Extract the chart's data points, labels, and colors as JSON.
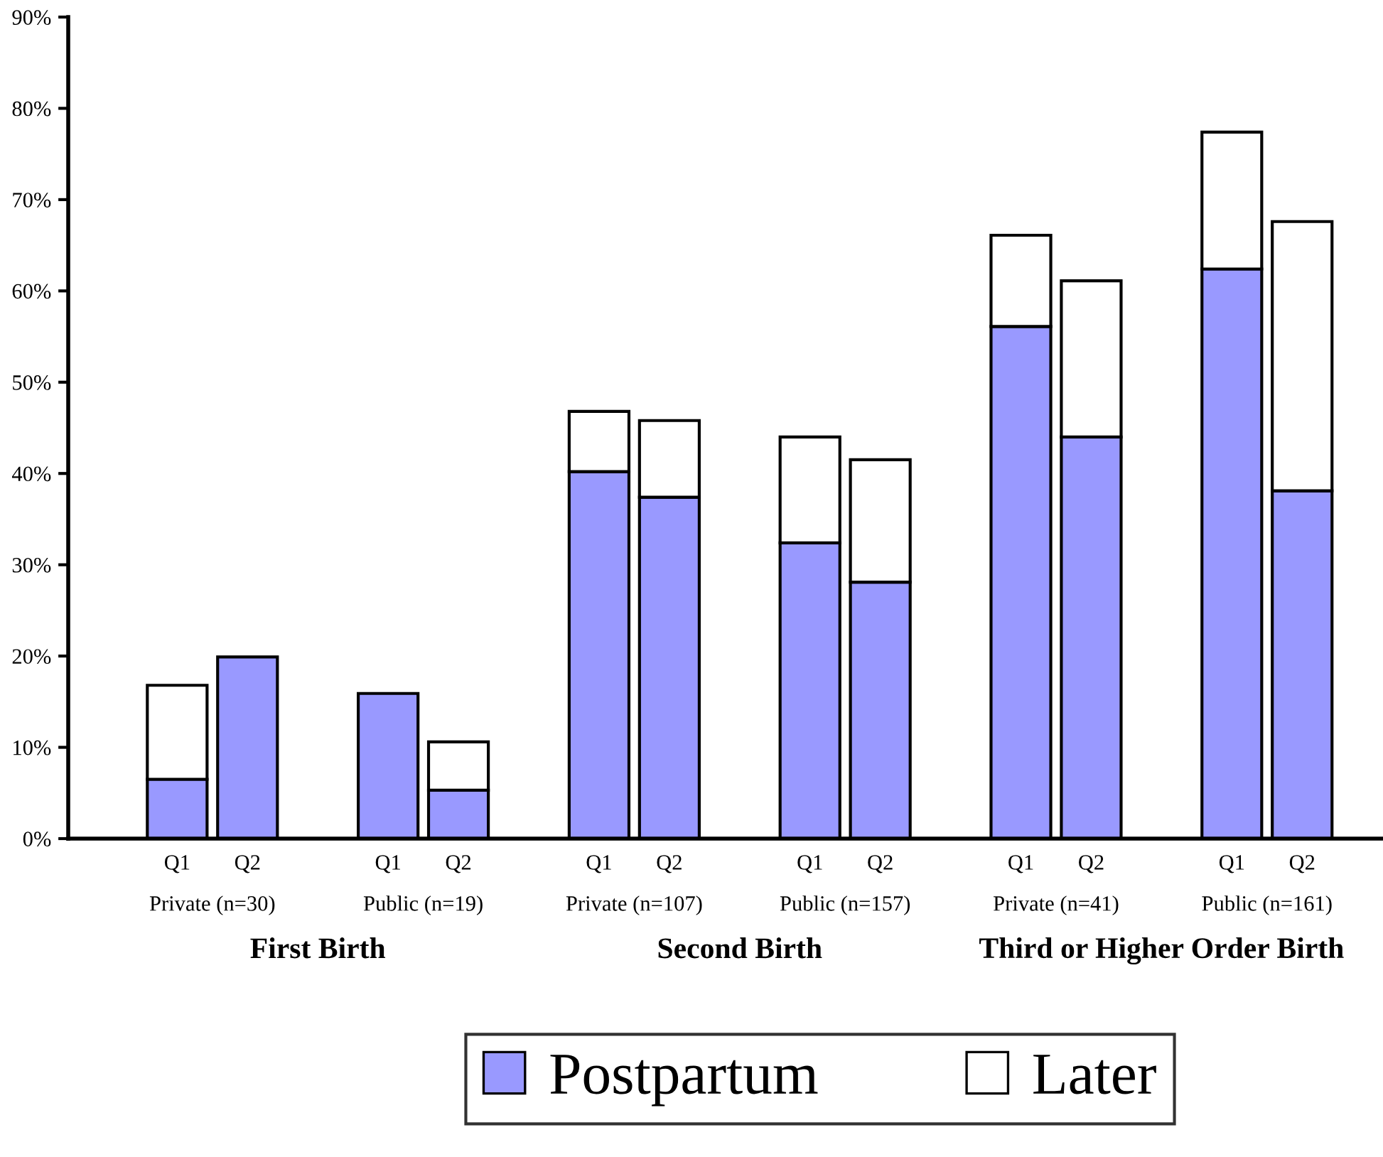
{
  "chart_data": {
    "type": "bar",
    "stacked": true,
    "categories": [
      "Q1",
      "Q2",
      "Q1",
      "Q2",
      "Q1",
      "Q2",
      "Q1",
      "Q2",
      "Q1",
      "Q2",
      "Q1",
      "Q2"
    ],
    "series": [
      {
        "name": "Postpartum",
        "color": "#9999ff",
        "values": [
          6.5,
          19.9,
          15.9,
          5.3,
          40.2,
          37.4,
          32.4,
          28.1,
          56.1,
          44.0,
          62.4,
          38.1
        ]
      },
      {
        "name": "Later",
        "color": "#ffffff",
        "values": [
          10.3,
          null,
          null,
          5.3,
          6.6,
          8.4,
          11.6,
          13.4,
          10.0,
          17.1,
          15.0,
          29.5
        ]
      }
    ],
    "ylim": [
      0,
      90
    ],
    "yticks": [
      {
        "value": 0,
        "label": "0%"
      },
      {
        "value": 10,
        "label": "10%"
      },
      {
        "value": 20,
        "label": "20%"
      },
      {
        "value": 30,
        "label": "30%"
      },
      {
        "value": 40,
        "label": "40%"
      },
      {
        "value": 50,
        "label": "50%"
      },
      {
        "value": 60,
        "label": "60%"
      },
      {
        "value": 70,
        "label": "70%"
      },
      {
        "value": 80,
        "label": "80%"
      },
      {
        "value": 90,
        "label": "90%"
      }
    ],
    "annotations": [
      "Private (n=30)",
      "Public (n=19)",
      "Private (n=107)",
      "Public (n=157)",
      "Private (n=41)",
      "Public (n=161)",
      "First Birth",
      "Second Birth",
      "Third or Higher Order Birth"
    ],
    "legend": "bottom",
    "grid": false
  }
}
